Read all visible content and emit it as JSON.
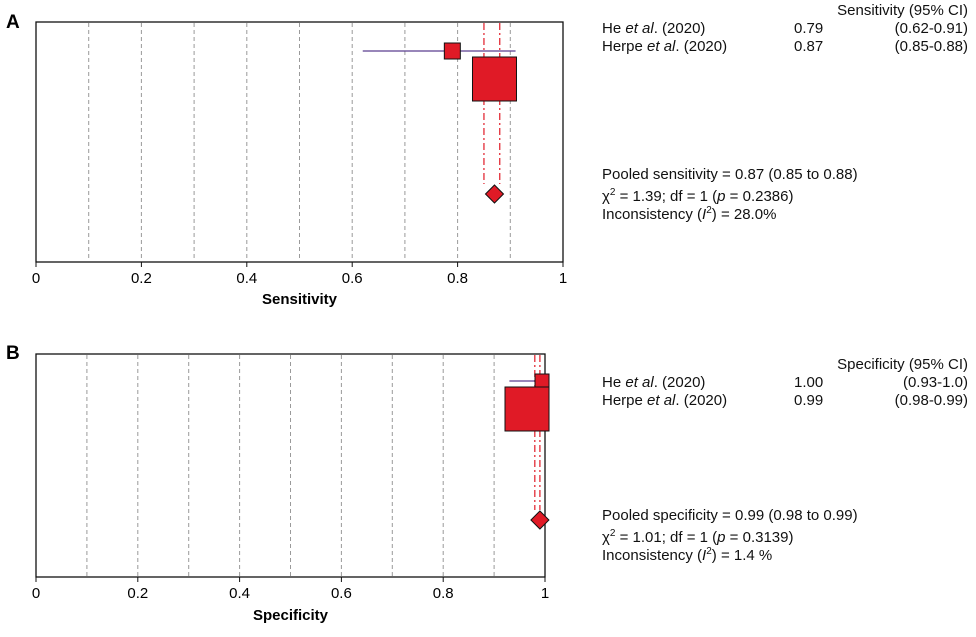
{
  "colors": {
    "marker": "#e01a26",
    "ci_line": "#5a3f8f",
    "pooled_line": "#e01a26",
    "grid": "#9a9a9a"
  },
  "chart_data": [
    {
      "type": "forest",
      "panel": "A",
      "xlabel": "Sensitivity",
      "xlim": [
        0,
        1
      ],
      "xticks": [
        "0",
        "0.2",
        "0.4",
        "0.6",
        "0.8",
        "1"
      ],
      "grid_x": [
        0.1,
        0.2,
        0.3,
        0.4,
        0.5,
        0.6,
        0.7,
        0.8,
        0.9
      ],
      "header": "Sensitivity (95% CI)",
      "studies": [
        {
          "author": "He",
          "etal": "et al",
          "year": ". (2020)",
          "estimate": 0.79,
          "estimate_label": "0.79",
          "ci_low": 0.62,
          "ci_high": 0.91,
          "ci_label": "(0.62-0.91)",
          "weight": "small"
        },
        {
          "author": "Herpe ",
          "etal": "et al",
          "year": ". (2020)",
          "estimate": 0.87,
          "estimate_label": "0.87",
          "ci_low": 0.85,
          "ci_high": 0.88,
          "ci_label": "(0.85-0.88)",
          "weight": "large"
        }
      ],
      "pooled": {
        "estimate": 0.87,
        "ci_low": 0.85,
        "ci_high": 0.88
      },
      "stats": {
        "pooled_line": "Pooled sensitivity = 0.87 (0.85 to 0.88)",
        "chi_a": " = 1.39; df = 1 (",
        "chi_p": "p",
        "chi_b": " = 0.2386)",
        "incons_a": "Inconsistency (",
        "incons_i": "I",
        "incons_b": ") = 28.0%"
      }
    },
    {
      "type": "forest",
      "panel": "B",
      "xlabel": "Specificity",
      "xlim": [
        0,
        1
      ],
      "xticks": [
        "0",
        "0.2",
        "0.4",
        "0.6",
        "0.8",
        "1"
      ],
      "grid_x": [
        0.1,
        0.2,
        0.3,
        0.4,
        0.5,
        0.6,
        0.7,
        0.8,
        0.9
      ],
      "header": "Specificity (95% CI)",
      "studies": [
        {
          "author": "He",
          "etal": "et al",
          "year": ". (2020)",
          "estimate": 1.0,
          "estimate_label": "1.00",
          "ci_low": 0.93,
          "ci_high": 1.0,
          "ci_label": "(0.93-1.0)",
          "weight": "small"
        },
        {
          "author": "Herpe ",
          "etal": "et al",
          "year": ". (2020)",
          "estimate": 0.99,
          "estimate_label": "0.99",
          "ci_low": 0.98,
          "ci_high": 0.99,
          "ci_label": "(0.98-0.99)",
          "weight": "large"
        }
      ],
      "pooled": {
        "estimate": 0.99,
        "ci_low": 0.98,
        "ci_high": 0.99
      },
      "stats": {
        "pooled_line": "Pooled specificity = 0.99 (0.98 to 0.99)",
        "chi_a": " = 1.01; df = 1 (",
        "chi_p": "p",
        "chi_b": " = 0.3139)",
        "incons_a": "Inconsistency (",
        "incons_i": "I",
        "incons_b": ") = 1.4 %"
      }
    }
  ]
}
